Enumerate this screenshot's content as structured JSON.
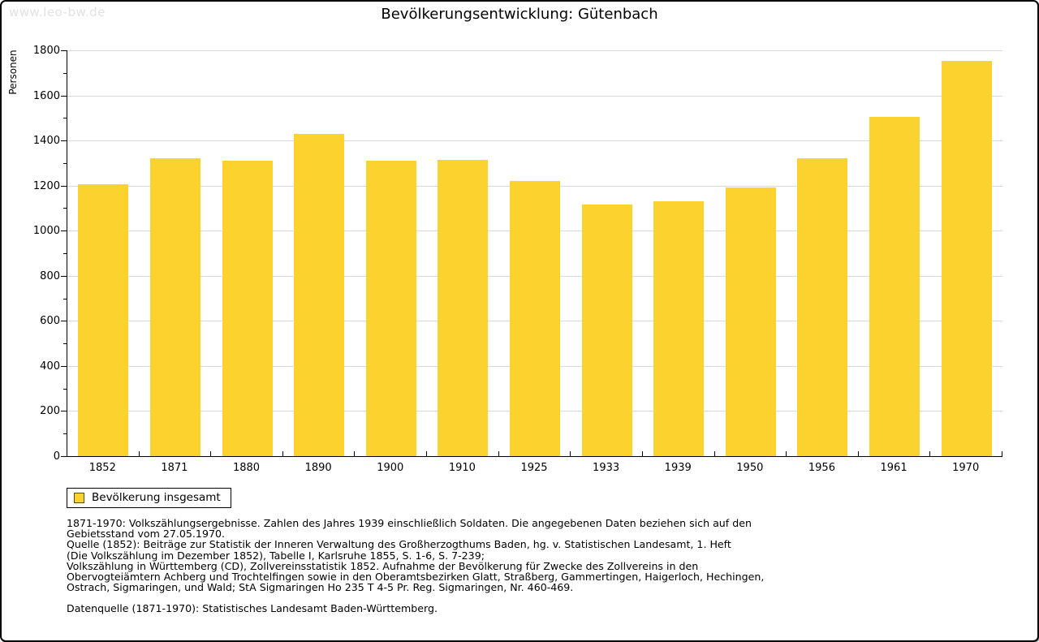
{
  "watermark": "www.leo-bw.de",
  "title": "Bevölkerungsentwicklung: Gütenbach",
  "legend": {
    "label": "Bevölkerung insgesamt"
  },
  "notes_lines": [
    "1871-1970: Volkszählungsergebnisse. Zahlen des Jahres 1939 einschließlich Soldaten. Die angegebenen Daten beziehen sich auf den",
    "Gebietsstand vom 27.05.1970.",
    "Quelle (1852): Beiträge zur Statistik der Inneren Verwaltung des Großherzogthums Baden, hg. v. Statistischen Landesamt, 1. Heft",
    "(Die Volkszählung im Dezember 1852), Tabelle I, Karlsruhe 1855, S. 1-6, S. 7-239;",
    "Volkszählung in Württemberg (CD), Zollvereinsstatistik 1852. Aufnahme der Bevölkerung für Zwecke des Zollvereins in den",
    "Obervogteiämtern Achberg und Trochtelfingen sowie in den Oberamtsbezirken Glatt, Straßberg, Gammertingen, Haigerloch, Hechingen,",
    "Ostrach, Sigmaringen, und Wald; StA Sigmaringen Ho 235 T 4-5 Pr. Reg. Sigmaringen, Nr. 460-469."
  ],
  "datasource": "Datenquelle (1871-1970): Statistisches Landesamt Baden-Württemberg.",
  "colors": {
    "bar": "#fcd32e",
    "grid": "#d9d9d9",
    "axis": "#000000",
    "watermark": "#e2e2e2"
  },
  "chart_data": {
    "type": "bar",
    "title": "Bevölkerungsentwicklung: Gütenbach",
    "series_name": "Bevölkerung insgesamt",
    "categories": [
      "1852",
      "1871",
      "1880",
      "1890",
      "1900",
      "1910",
      "1925",
      "1933",
      "1939",
      "1950",
      "1956",
      "1961",
      "1970"
    ],
    "values": [
      1205,
      1320,
      1310,
      1430,
      1310,
      1315,
      1220,
      1115,
      1130,
      1190,
      1320,
      1505,
      1755
    ],
    "xlabel": "",
    "ylabel": "Personen",
    "ylim": [
      0,
      1800
    ],
    "ytick_major_step": 200,
    "ytick_minor_step": 100,
    "grid": "horizontal-major",
    "legend_position": "bottom-left"
  }
}
